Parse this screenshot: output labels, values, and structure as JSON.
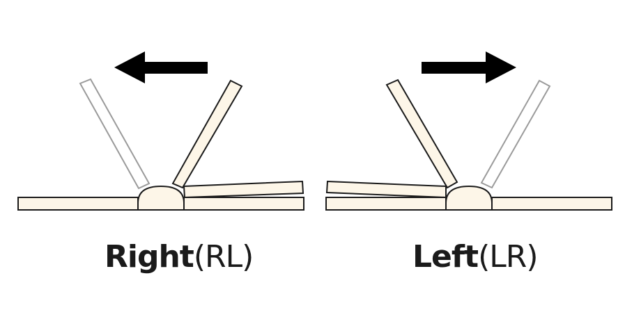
{
  "diagrams": [
    {
      "id": "right",
      "direction": "left",
      "label_bold": "Right",
      "label_paren": "(RL)"
    },
    {
      "id": "left",
      "direction": "right",
      "label_bold": "Left",
      "label_paren": "(LR)"
    }
  ],
  "colors": {
    "page_fill": "#fdf6e8",
    "page_stroke": "#1a1a1a",
    "ghost_stroke": "#9a9a9a",
    "ghost_fill": "#ffffff",
    "arrow": "#000000",
    "text": "#1a1a1a"
  }
}
